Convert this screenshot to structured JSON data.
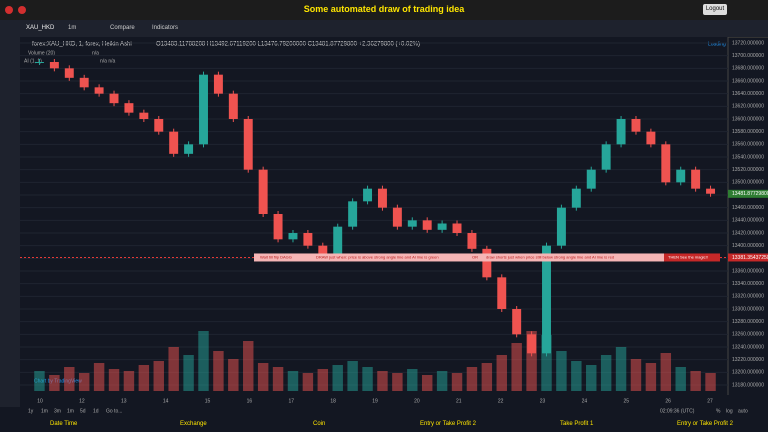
{
  "header": {
    "title": "Some automated draw of trading idea",
    "logout": "Logout"
  },
  "toolbar": {
    "symbol": "XAU_HKD",
    "interval": "1m",
    "compare": "Compare",
    "indicators": "Indicators"
  },
  "legend": {
    "symbol": "forex:XAU_HKD, 1, forex, Heikin Ashi",
    "ohlc": "O13483.11788208 H13492.67119200 L13476.79200000 C13481.87729800 +2.36279800 (+0.02%)",
    "volume": "Volume (20)",
    "volume_value": "n/a",
    "ai": "AI (1, 1)",
    "ai_value": "n/a n/a",
    "loading": "Loading"
  },
  "banner": {
    "texts": [
      "Wait till flip DAGG",
      "DRAW just when: price is above strong angle line and AI line is green",
      "OR",
      "draw shorts just when price still below strong angle line and AI line is red",
      "THEN See the magic!!"
    ],
    "price": 13381.3543725,
    "price_label": "13381.35437250"
  },
  "last": {
    "price": 13481.877298,
    "price_label": "13481.87729800"
  },
  "chart_data": {
    "type": "candlestick",
    "values": [
      13690,
      13680,
      13665,
      13650,
      13640,
      13625,
      13610,
      13600,
      13580,
      13545,
      13560,
      13670,
      13640,
      13600,
      13520,
      13450,
      13410,
      13420,
      13400,
      13385,
      13430,
      13470,
      13490,
      13460,
      13430,
      13440,
      13425,
      13435,
      13420,
      13395,
      13350,
      13300,
      13260,
      13230,
      13400,
      13460,
      13490,
      13520,
      13560,
      13600,
      13580,
      13560,
      13500,
      13520,
      13490,
      13482
    ],
    "volume": [
      10,
      8,
      12,
      9,
      14,
      11,
      10,
      13,
      15,
      22,
      18,
      30,
      20,
      16,
      25,
      14,
      12,
      10,
      9,
      11,
      13,
      15,
      12,
      10,
      9,
      11,
      8,
      10,
      9,
      12,
      14,
      18,
      24,
      30,
      28,
      20,
      15,
      13,
      18,
      22,
      16,
      14,
      19,
      12,
      10,
      9
    ],
    "ylim": [
      13180,
      13720
    ],
    "yticks": [
      {
        "value": 13720,
        "label": "13720.000000"
      },
      {
        "value": 13700,
        "label": "13700.000000"
      },
      {
        "value": 13680,
        "label": "13680.000000"
      },
      {
        "value": 13660,
        "label": "13660.000000"
      },
      {
        "value": 13640,
        "label": "13640.000000"
      },
      {
        "value": 13620,
        "label": "13620.000000"
      },
      {
        "value": 13600,
        "label": "13600.000000"
      },
      {
        "value": 13580,
        "label": "13580.000000"
      },
      {
        "value": 13560,
        "label": "13560.000000"
      },
      {
        "value": 13540,
        "label": "13540.000000"
      },
      {
        "value": 13520,
        "label": "13520.000000"
      },
      {
        "value": 13500,
        "label": "13500.000000"
      },
      {
        "value": 13480,
        "label": "13480.000000"
      },
      {
        "value": 13460,
        "label": "13460.000000"
      },
      {
        "value": 13440,
        "label": "13440.000000"
      },
      {
        "value": 13420,
        "label": "13420.000000"
      },
      {
        "value": 13400,
        "label": "13400.000000"
      },
      {
        "value": 13380,
        "label": "13380.000000"
      },
      {
        "value": 13360,
        "label": "13360.000000"
      },
      {
        "value": 13340,
        "label": "13340.000000"
      },
      {
        "value": 13320,
        "label": "13320.000000"
      },
      {
        "value": 13300,
        "label": "13300.000000"
      },
      {
        "value": 13280,
        "label": "13280.000000"
      },
      {
        "value": 13260,
        "label": "13260.000000"
      },
      {
        "value": 13240,
        "label": "13240.000000"
      },
      {
        "value": 13220,
        "label": "13220.000000"
      },
      {
        "value": 13200,
        "label": "13200.000000"
      },
      {
        "value": 13180,
        "label": "13180.000000"
      }
    ],
    "xticks": [
      "10",
      "12",
      "13",
      "14",
      "15",
      "16",
      "17",
      "18",
      "19",
      "20",
      "21",
      "22",
      "23",
      "24",
      "25",
      "26",
      "27"
    ],
    "up_color": "#26a69a",
    "down_color": "#ef5350"
  },
  "bottom": {
    "ranges": [
      "1y",
      "1m",
      "3m",
      "1m",
      "5d",
      "1d",
      "Go to..."
    ],
    "time": "02:09:36 (UTC)",
    "percent": "%",
    "log": "log",
    "auto": "auto",
    "watermark": "Chart by TradingView"
  },
  "footer": [
    "Date Time",
    "Exchange",
    "Coin",
    "Entry or Take Profit 2",
    "Take Profit 1",
    "Entry or Take Profit 2"
  ]
}
